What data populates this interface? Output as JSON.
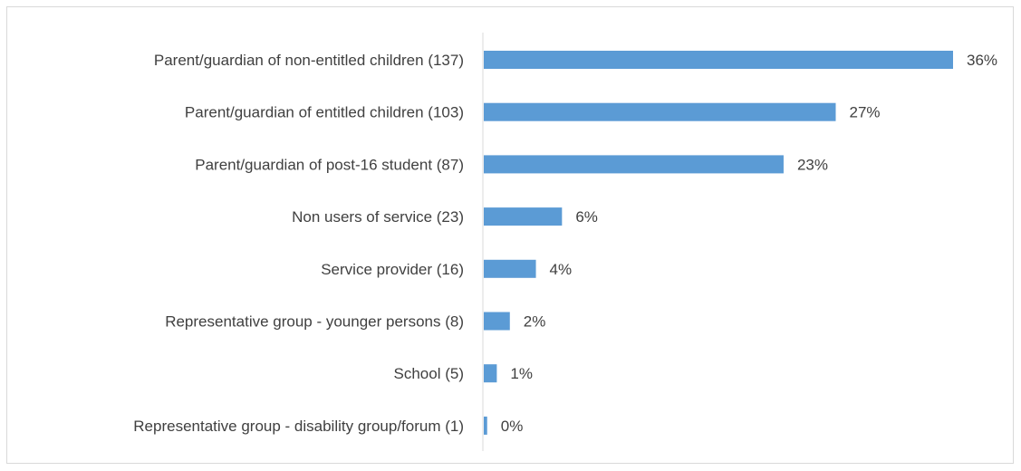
{
  "chart_data": {
    "type": "bar",
    "orientation": "horizontal",
    "categories": [
      "Parent/guardian of non-entitled children (137)",
      "Parent/guardian of entitled children (103)",
      "Parent/guardian of post-16 student (87)",
      "Non users of service (23)",
      "Service provider (16)",
      "Representative group - younger persons (8)",
      "School (5)",
      "Representative group - disability group/forum (1)"
    ],
    "values": [
      36,
      27,
      23,
      6,
      4,
      2,
      1,
      0.26
    ],
    "data_labels": [
      "36%",
      "27%",
      "23%",
      "6%",
      "4%",
      "2%",
      "1%",
      "0%"
    ],
    "unit": "%",
    "xlim": [
      0,
      36
    ],
    "grid": false,
    "legend": "none",
    "colors": {
      "bar": "#5b9bd5",
      "axis": "#d9d9d9",
      "text": "#404040",
      "frame": "#d9d9d9"
    }
  }
}
